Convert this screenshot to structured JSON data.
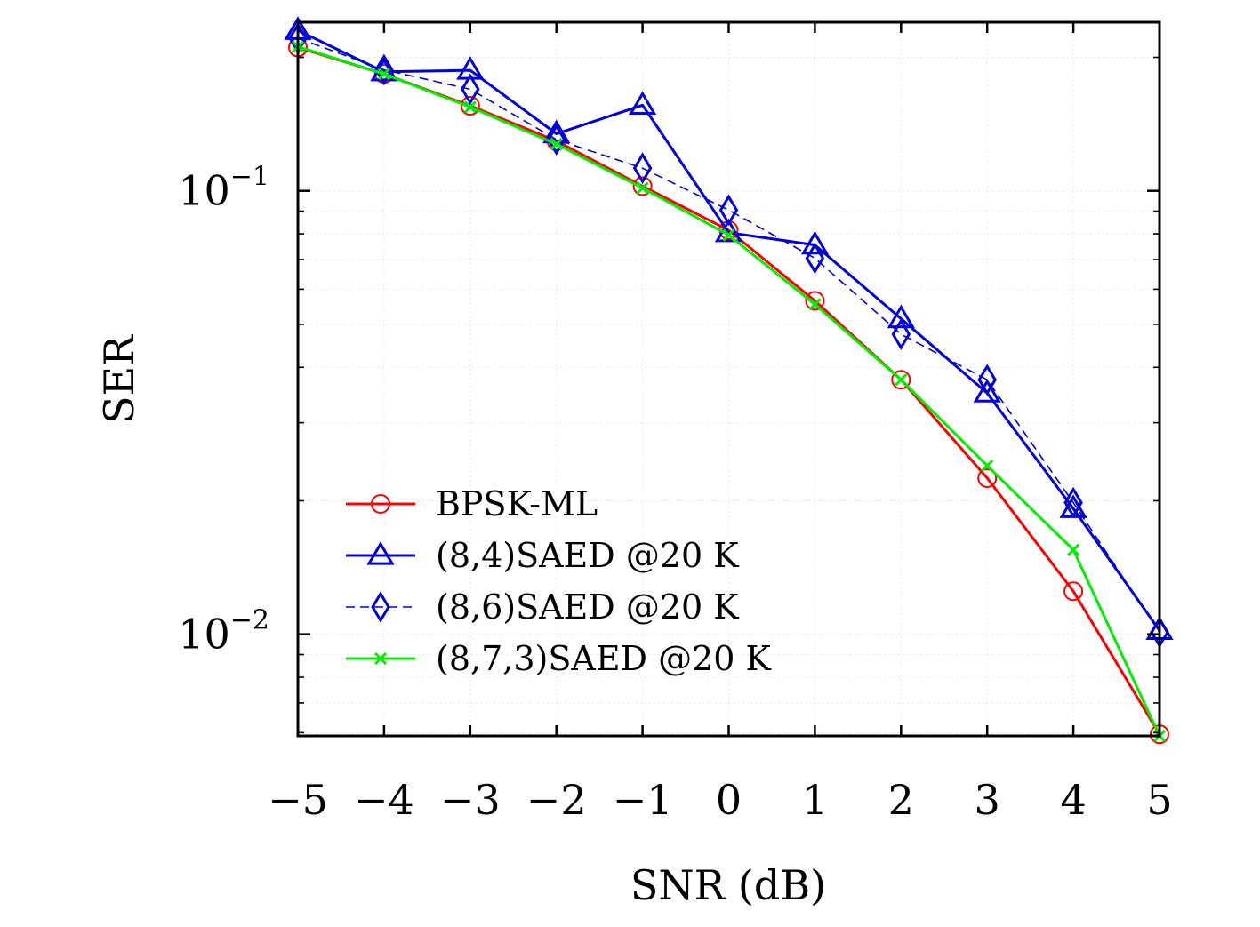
{
  "chart_data": {
    "type": "line",
    "title": "",
    "xlabel": "SNR (dB)",
    "ylabel": "SER",
    "x": [
      -5,
      -4,
      -3,
      -2,
      -1,
      0,
      1,
      2,
      3,
      4,
      5
    ],
    "x_tick_labels": [
      "−5",
      "−4",
      "−3",
      "−2",
      "−1",
      "0",
      "1",
      "2",
      "3",
      "4",
      "5"
    ],
    "xlim": [
      -5,
      5
    ],
    "ylim": [
      0.0059,
      0.24
    ],
    "yscale": "log",
    "y_ticks": [
      {
        "value": 0.1,
        "base": "10",
        "exp": "−1"
      },
      {
        "value": 0.01,
        "base": "10",
        "exp": "−2"
      }
    ],
    "grid": true,
    "legend_position": "lower-left",
    "series": [
      {
        "name": "BPSK-ML",
        "color": "#ff0000",
        "marker": "circle",
        "dash": "solid",
        "values": [
          0.2105,
          0.1835,
          0.1555,
          0.1295,
          0.1025,
          0.0815,
          0.0565,
          0.0375,
          0.0225,
          0.0125,
          0.00595
        ]
      },
      {
        "name": "(8,4)SAED @20 K",
        "color": "#0000dd",
        "marker": "triangle",
        "dash": "solid",
        "values": [
          0.23,
          0.1855,
          0.187,
          0.1345,
          0.156,
          0.0805,
          0.0755,
          0.0515,
          0.035,
          0.0192,
          0.0102
        ]
      },
      {
        "name": "(8,6)SAED @20 K",
        "color": "#0000dd",
        "marker": "diamond",
        "dash": "dashed",
        "values": [
          0.221,
          0.1875,
          0.1695,
          0.1305,
          0.1125,
          0.0905,
          0.0705,
          0.0475,
          0.0375,
          0.0198,
          0.0101
        ]
      },
      {
        "name": "(8,7,3)SAED @20 K",
        "color": "#00ee00",
        "marker": "x",
        "dash": "solid",
        "values": [
          0.2115,
          0.1835,
          0.1545,
          0.1275,
          0.1015,
          0.0795,
          0.0555,
          0.0375,
          0.024,
          0.0155,
          0.0059
        ]
      }
    ]
  }
}
